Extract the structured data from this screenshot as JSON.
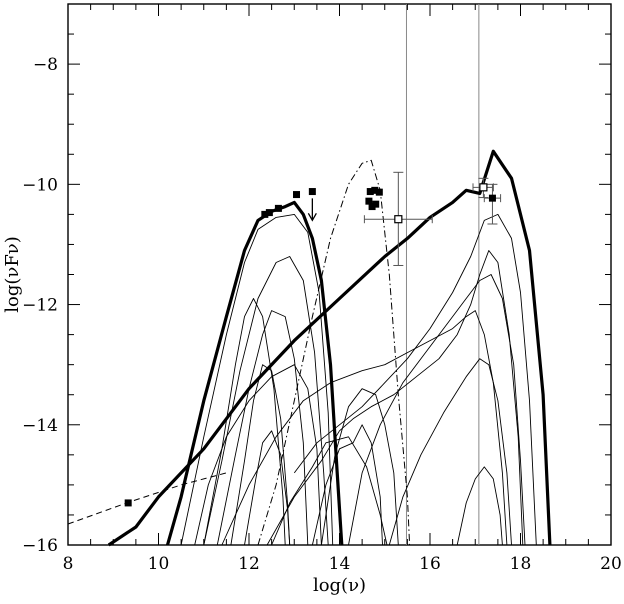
{
  "chart_data": {
    "type": "line",
    "title": "",
    "xlabel": "log(ν)",
    "ylabel": "log(νFν)",
    "xlim": [
      8,
      20
    ],
    "ylim": [
      -16,
      -7
    ],
    "x_ticks": [
      8,
      10,
      12,
      14,
      16,
      18,
      20
    ],
    "y_ticks": [
      -16,
      -14,
      -12,
      -10,
      -8
    ],
    "x_tick_labels": [
      "8",
      "10",
      "12",
      "14",
      "16",
      "18",
      "20"
    ],
    "y_tick_labels": [
      "−16",
      "−14",
      "−12",
      "−10",
      "−8"
    ],
    "grid": false,
    "vertical_lines": [
      15.48,
      17.08
    ],
    "series": [
      {
        "style": "thick",
        "points": [
          [
            10.2,
            -16
          ],
          [
            10.5,
            -15.2
          ],
          [
            11,
            -13.6
          ],
          [
            11.5,
            -12.2
          ],
          [
            11.9,
            -11.1
          ],
          [
            12.2,
            -10.6
          ],
          [
            12.5,
            -10.45
          ],
          [
            12.8,
            -10.37
          ],
          [
            13.0,
            -10.3
          ],
          [
            13.2,
            -10.5
          ],
          [
            13.4,
            -10.9
          ],
          [
            13.6,
            -11.6
          ],
          [
            13.8,
            -13.0
          ],
          [
            13.95,
            -14.8
          ],
          [
            14.05,
            -16
          ]
        ]
      },
      {
        "style": "thick",
        "points": [
          [
            8.9,
            -16
          ],
          [
            9.5,
            -15.7
          ],
          [
            10,
            -15.2
          ],
          [
            11,
            -14.4
          ],
          [
            12,
            -13.4
          ],
          [
            13,
            -12.6
          ],
          [
            14,
            -11.9
          ],
          [
            15,
            -11.2
          ],
          [
            15.5,
            -10.9
          ],
          [
            16,
            -10.55
          ],
          [
            16.5,
            -10.3
          ],
          [
            16.8,
            -10.1
          ],
          [
            17.1,
            -10.15
          ],
          [
            17.4,
            -9.45
          ],
          [
            17.8,
            -9.9
          ],
          [
            18.2,
            -11.1
          ],
          [
            18.5,
            -13.5
          ],
          [
            18.65,
            -16
          ]
        ]
      },
      {
        "style": "dashdot",
        "points": [
          [
            12.2,
            -16
          ],
          [
            12.6,
            -15
          ],
          [
            13.0,
            -13.6
          ],
          [
            13.4,
            -12.2
          ],
          [
            13.8,
            -10.9
          ],
          [
            14.2,
            -10.0
          ],
          [
            14.5,
            -9.65
          ],
          [
            14.7,
            -9.6
          ],
          [
            14.9,
            -10.1
          ],
          [
            15.1,
            -11.5
          ],
          [
            15.3,
            -13.5
          ],
          [
            15.5,
            -15.2
          ],
          [
            15.55,
            -16
          ]
        ]
      },
      {
        "style": "dashed",
        "points": [
          [
            8,
            -15.65
          ],
          [
            9.3,
            -15.3
          ],
          [
            10.5,
            -15.0
          ],
          [
            11.5,
            -14.8
          ]
        ]
      },
      {
        "style": "thin",
        "points": [
          [
            10.5,
            -16
          ],
          [
            11.0,
            -14.2
          ],
          [
            11.5,
            -12.5
          ],
          [
            11.9,
            -11.3
          ],
          [
            12.2,
            -10.75
          ],
          [
            12.6,
            -10.55
          ],
          [
            13.0,
            -10.5
          ],
          [
            13.3,
            -10.8
          ],
          [
            13.55,
            -11.8
          ],
          [
            13.75,
            -13.8
          ],
          [
            13.85,
            -16
          ]
        ]
      },
      {
        "style": "thin",
        "points": [
          [
            11.0,
            -16
          ],
          [
            11.4,
            -14.6
          ],
          [
            11.8,
            -13.1
          ],
          [
            12.2,
            -11.9
          ],
          [
            12.6,
            -11.3
          ],
          [
            12.9,
            -11.2
          ],
          [
            13.2,
            -11.6
          ],
          [
            13.45,
            -12.8
          ],
          [
            13.65,
            -14.8
          ],
          [
            13.75,
            -16
          ]
        ]
      },
      {
        "style": "thin",
        "points": [
          [
            11.3,
            -16
          ],
          [
            11.7,
            -14.5
          ],
          [
            12.0,
            -13.4
          ],
          [
            12.3,
            -12.5
          ],
          [
            12.5,
            -12.1
          ],
          [
            12.8,
            -12.2
          ],
          [
            13.0,
            -12.9
          ],
          [
            13.2,
            -14.3
          ],
          [
            13.3,
            -16
          ]
        ]
      },
      {
        "style": "thin",
        "points": [
          [
            11.6,
            -16
          ],
          [
            11.9,
            -14.6
          ],
          [
            12.1,
            -13.6
          ],
          [
            12.3,
            -13.0
          ],
          [
            12.5,
            -13.1
          ],
          [
            12.7,
            -13.9
          ],
          [
            12.85,
            -15.3
          ],
          [
            12.9,
            -16
          ]
        ]
      },
      {
        "style": "thin",
        "points": [
          [
            11.9,
            -16
          ],
          [
            12.15,
            -14.9
          ],
          [
            12.3,
            -14.3
          ],
          [
            12.5,
            -14.1
          ],
          [
            12.7,
            -14.5
          ],
          [
            12.85,
            -15.4
          ],
          [
            12.9,
            -16
          ]
        ]
      },
      {
        "style": "thin",
        "points": [
          [
            11.0,
            -16
          ],
          [
            11.4,
            -14.4
          ],
          [
            11.7,
            -13.0
          ],
          [
            11.9,
            -12.2
          ],
          [
            12.1,
            -11.9
          ],
          [
            12.3,
            -12.2
          ],
          [
            12.55,
            -13.4
          ],
          [
            12.75,
            -15.2
          ],
          [
            12.8,
            -16
          ]
        ]
      },
      {
        "style": "thin",
        "points": [
          [
            10.8,
            -16
          ],
          [
            11.1,
            -15.0
          ],
          [
            11.5,
            -14.2
          ],
          [
            12.0,
            -13.6
          ],
          [
            12.5,
            -13.2
          ],
          [
            13.0,
            -13.0
          ],
          [
            13.3,
            -13.4
          ],
          [
            13.5,
            -14.4
          ],
          [
            13.6,
            -16
          ]
        ]
      },
      {
        "style": "thin",
        "points": [
          [
            12.5,
            -16
          ],
          [
            12.9,
            -15.3
          ],
          [
            13.4,
            -14.7
          ],
          [
            13.7,
            -14.3
          ],
          [
            14.2,
            -14.2
          ],
          [
            14.6,
            -14.7
          ],
          [
            14.9,
            -15.5
          ],
          [
            15.05,
            -16
          ]
        ]
      },
      {
        "style": "thin",
        "points": [
          [
            13.6,
            -16
          ],
          [
            13.9,
            -14.5
          ],
          [
            14.2,
            -13.7
          ],
          [
            14.5,
            -13.4
          ],
          [
            14.8,
            -13.5
          ],
          [
            15.0,
            -14.0
          ],
          [
            15.2,
            -14.8
          ],
          [
            15.3,
            -16
          ]
        ]
      },
      {
        "style": "thin",
        "points": [
          [
            13.4,
            -16
          ],
          [
            13.7,
            -15.0
          ],
          [
            14.0,
            -14.4
          ],
          [
            14.3,
            -14.3
          ],
          [
            14.5,
            -14.0
          ],
          [
            14.7,
            -14.3
          ],
          [
            14.9,
            -15.2
          ],
          [
            14.95,
            -16
          ]
        ]
      },
      {
        "style": "thin",
        "points": [
          [
            11.4,
            -16
          ],
          [
            12.0,
            -15.0
          ],
          [
            12.6,
            -14.2
          ],
          [
            13.2,
            -13.6
          ],
          [
            13.8,
            -13.3
          ],
          [
            14.5,
            -13.1
          ],
          [
            15.0,
            -13.0
          ],
          [
            15.5,
            -12.8
          ],
          [
            16.0,
            -12.6
          ],
          [
            16.5,
            -12.4
          ],
          [
            16.8,
            -12.2
          ],
          [
            17.0,
            -12.1
          ],
          [
            17.2,
            -12.5
          ],
          [
            17.4,
            -13.3
          ],
          [
            17.6,
            -14.8
          ],
          [
            17.7,
            -16
          ]
        ]
      },
      {
        "style": "thin",
        "points": [
          [
            12.4,
            -16
          ],
          [
            13.0,
            -15.2
          ],
          [
            13.6,
            -14.6
          ],
          [
            14.0,
            -14.1
          ],
          [
            14.3,
            -13.9
          ],
          [
            14.7,
            -13.7
          ],
          [
            15.2,
            -13.5
          ],
          [
            15.7,
            -13.2
          ],
          [
            16.2,
            -12.9
          ],
          [
            16.6,
            -12.5
          ],
          [
            16.9,
            -12.0
          ],
          [
            17.1,
            -11.5
          ],
          [
            17.3,
            -11.1
          ],
          [
            17.5,
            -11.3
          ],
          [
            17.75,
            -12.5
          ],
          [
            17.95,
            -14.2
          ],
          [
            18.05,
            -16
          ]
        ]
      },
      {
        "style": "thin",
        "points": [
          [
            13.0,
            -14.8
          ],
          [
            13.5,
            -14.3
          ],
          [
            14.0,
            -14.0
          ],
          [
            14.5,
            -13.7
          ],
          [
            15.0,
            -13.3
          ],
          [
            15.5,
            -12.9
          ],
          [
            16.0,
            -12.4
          ],
          [
            16.5,
            -11.8
          ],
          [
            16.9,
            -11.2
          ],
          [
            17.2,
            -10.6
          ],
          [
            17.5,
            -10.5
          ],
          [
            17.8,
            -10.9
          ],
          [
            18.0,
            -11.8
          ],
          [
            18.2,
            -13.6
          ],
          [
            18.35,
            -16
          ]
        ]
      },
      {
        "style": "thin",
        "points": [
          [
            14.2,
            -16
          ],
          [
            14.5,
            -14.8
          ],
          [
            14.9,
            -14.0
          ],
          [
            15.4,
            -13.3
          ],
          [
            15.9,
            -12.8
          ],
          [
            16.4,
            -12.3
          ],
          [
            16.8,
            -11.9
          ],
          [
            17.1,
            -11.6
          ],
          [
            17.35,
            -11.5
          ],
          [
            17.6,
            -11.9
          ],
          [
            17.85,
            -13.0
          ],
          [
            18.0,
            -14.6
          ],
          [
            18.1,
            -16
          ]
        ]
      },
      {
        "style": "thin",
        "points": [
          [
            15.1,
            -16
          ],
          [
            15.4,
            -15.2
          ],
          [
            15.8,
            -14.5
          ],
          [
            16.3,
            -13.8
          ],
          [
            16.8,
            -13.2
          ],
          [
            17.1,
            -12.9
          ],
          [
            17.3,
            -13.0
          ],
          [
            17.5,
            -13.6
          ],
          [
            17.7,
            -14.8
          ],
          [
            17.8,
            -16
          ]
        ]
      },
      {
        "style": "thin",
        "points": [
          [
            16.6,
            -16
          ],
          [
            16.8,
            -15.3
          ],
          [
            17.0,
            -14.9
          ],
          [
            17.2,
            -14.7
          ],
          [
            17.4,
            -14.9
          ],
          [
            17.55,
            -15.5
          ],
          [
            17.6,
            -16
          ]
        ]
      }
    ],
    "points_filled": [
      [
        9.33,
        -15.3
      ],
      [
        12.35,
        -10.5
      ],
      [
        12.45,
        -10.47
      ],
      [
        12.65,
        -10.4
      ],
      [
        13.05,
        -10.17
      ],
      [
        13.4,
        -10.12
      ],
      [
        14.68,
        -10.12
      ],
      [
        14.78,
        -10.1
      ],
      [
        14.88,
        -10.13
      ],
      [
        14.65,
        -10.28
      ],
      [
        14.8,
        -10.33
      ],
      [
        14.72,
        -10.37
      ],
      [
        17.38,
        -10.23
      ]
    ],
    "points_open": [
      [
        15.3,
        -10.58
      ],
      [
        17.18,
        -10.05
      ]
    ],
    "upper_limit_arrows": [
      [
        13.4,
        -10.15
      ]
    ],
    "error_bars": [
      {
        "x": 15.3,
        "y": -10.58,
        "xlo": 14.55,
        "xhi": 16.05,
        "ylo": -11.35,
        "yhi": -9.8
      },
      {
        "x": 17.38,
        "y": -10.23,
        "xlo": 17.2,
        "xhi": 17.56,
        "ylo": -10.66,
        "yhi": -10.0
      },
      {
        "x": 17.18,
        "y": -10.05,
        "xlo": 16.95,
        "xhi": 17.4,
        "ylo": -10.22,
        "yhi": -9.9
      }
    ]
  }
}
